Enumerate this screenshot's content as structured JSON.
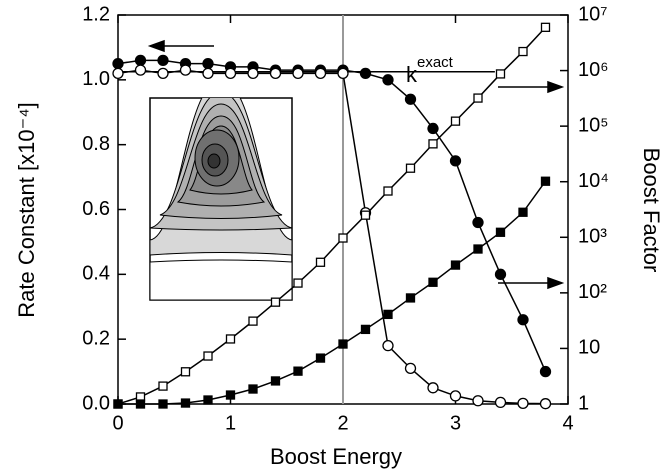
{
  "chart_data": {
    "type": "line",
    "xlabel": "Boost Energy",
    "ylabel": "Rate Constant  [x10⁻⁴]",
    "y2label": "Boost Factor",
    "annotation": {
      "text": "k",
      "sup": "exact"
    },
    "x": [
      0,
      0.2,
      0.4,
      0.6,
      0.8,
      1.0,
      1.2,
      1.4,
      1.6,
      1.8,
      2.0,
      2.2,
      2.4,
      2.6,
      2.8,
      3.0,
      3.2,
      3.4,
      3.6,
      3.8
    ],
    "xlim": [
      0,
      4
    ],
    "xticks": [
      0,
      1,
      2,
      3,
      4
    ],
    "ylim": [
      0,
      1.2
    ],
    "yticks": [
      {
        "value": 0,
        "label": "0.0"
      },
      {
        "value": 0.2,
        "label": "0.2"
      },
      {
        "value": 0.4,
        "label": "0.4"
      },
      {
        "value": 0.6,
        "label": "0.6"
      },
      {
        "value": 0.8,
        "label": "0.8"
      },
      {
        "value": 1.0,
        "label": "1.0"
      },
      {
        "value": 1.2,
        "label": "1.2"
      }
    ],
    "y2lim": [
      1,
      10000000
    ],
    "y2scale": "log",
    "y2ticks": [
      1,
      10,
      {
        "value": 100,
        "label": "10²"
      },
      {
        "value": 1000,
        "label": "10³"
      },
      {
        "value": 10000,
        "label": "10⁴"
      },
      {
        "value": 100000,
        "label": "10⁵"
      },
      {
        "value": 1000000,
        "label": "10⁶"
      },
      {
        "value": 10000000,
        "label": "10⁷"
      }
    ],
    "vline_x": 2,
    "k_exact": 1.025,
    "series": [
      {
        "marker": "circle",
        "filled": true,
        "color": "#000",
        "axis": "y",
        "values": [
          1.05,
          1.06,
          1.06,
          1.05,
          1.05,
          1.04,
          1.04,
          1.03,
          1.03,
          1.03,
          1.03,
          1.02,
          1.0,
          0.94,
          0.85,
          0.75,
          0.56,
          0.4,
          0.26,
          0.1
        ]
      },
      {
        "marker": "circle",
        "filled": false,
        "color": "#000",
        "axis": "y",
        "values": [
          1.02,
          1.03,
          1.02,
          1.03,
          1.02,
          1.02,
          1.02,
          1.02,
          1.02,
          1.02,
          1.02,
          0.59,
          0.18,
          0.11,
          0.05,
          0.025,
          0.01,
          0.005,
          0.002,
          0.001
        ]
      },
      {
        "marker": "square",
        "filled": false,
        "color": "#000",
        "axis": "y2",
        "values": [
          1,
          1.34,
          2.1,
          3.8,
          7.3,
          14.8,
          31,
          68,
          150,
          355,
          970,
          2500,
          6800,
          17500,
          48000,
          123000,
          320000,
          870000,
          2200000,
          6000000
        ]
      },
      {
        "marker": "square",
        "filled": true,
        "color": "#000",
        "axis": "y2",
        "values": [
          1,
          1,
          1,
          1.04,
          1.18,
          1.45,
          1.86,
          2.6,
          3.9,
          6.7,
          12,
          22,
          41,
          81,
          155,
          316,
          615,
          1230,
          2820,
          10200
        ]
      }
    ]
  }
}
